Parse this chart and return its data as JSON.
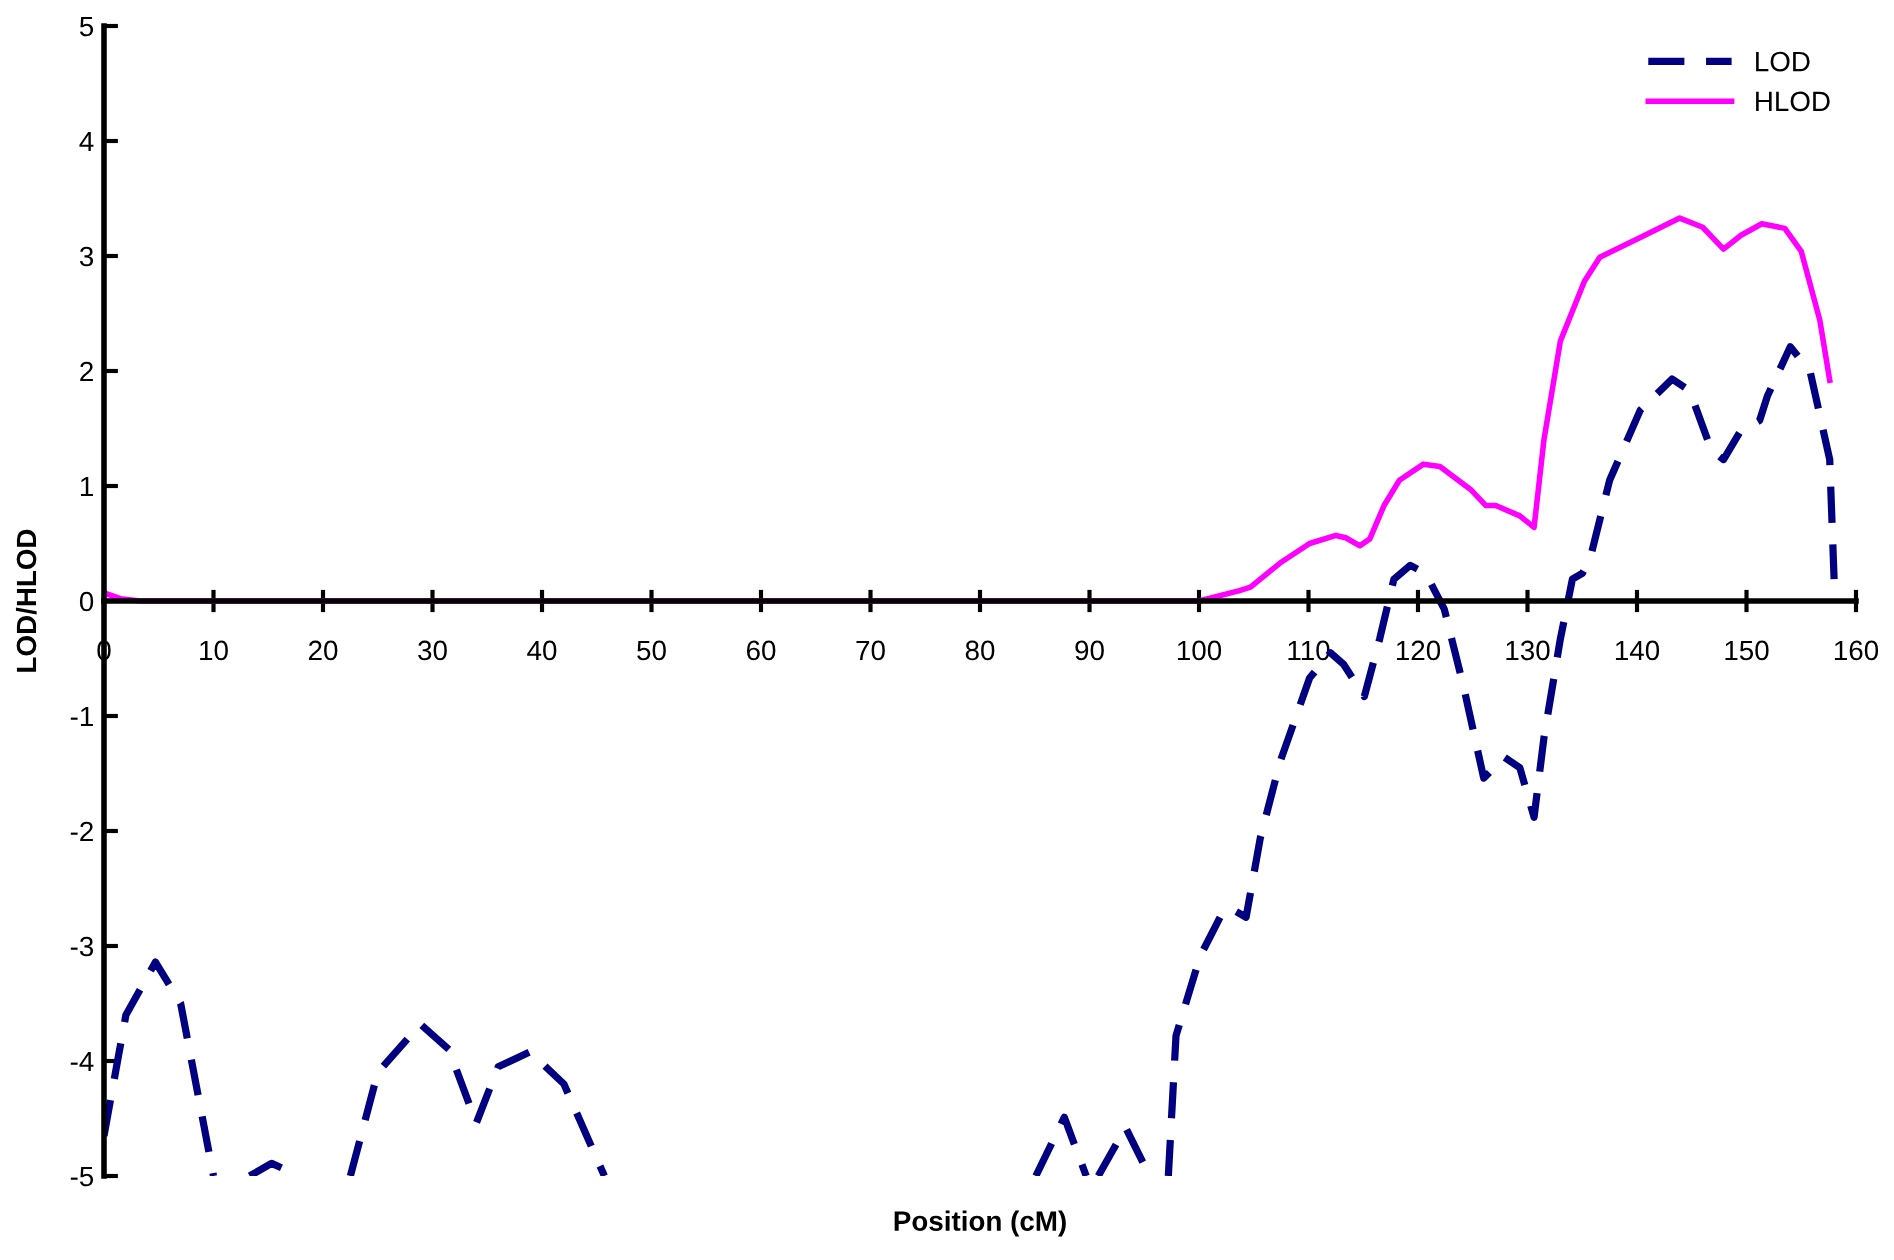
{
  "chart_data": {
    "type": "line",
    "xlabel": "Position (cM)",
    "ylabel": "LOD/HLOD",
    "xlim": [
      0,
      160
    ],
    "ylim": [
      -5,
      5
    ],
    "xticks": [
      0,
      10,
      20,
      30,
      40,
      50,
      60,
      70,
      80,
      90,
      100,
      110,
      120,
      130,
      140,
      150,
      160
    ],
    "yticks": [
      -5,
      -4,
      -3,
      -2,
      -1,
      0,
      1,
      2,
      3,
      4,
      5
    ],
    "grid": false,
    "legend": "top right",
    "marker": "none",
    "series": [
      {
        "name": "LOD",
        "color": "#000080",
        "line_style": "dashed",
        "x": [
          0,
          2,
          4.7,
          7,
          10,
          11.5,
          13.3,
          15.3,
          17.9,
          20,
          22.5,
          25,
          28.9,
          31.5,
          34,
          36,
          38.9,
          42,
          45.7,
          60,
          85.1,
          87.7,
          89.7,
          90.2,
          90.8,
          93.3,
          95.5,
          96.3,
          97.2,
          97.9,
          100.1,
          102.3,
          103.2,
          104.3,
          105.6,
          107.4,
          110.1,
          112,
          113.2,
          115.1,
          116.5,
          117.8,
          119.3,
          120.7,
          122.4,
          124.2,
          126,
          127.9,
          129.3,
          130.6,
          131.5,
          133,
          134.1,
          135,
          135.7,
          137.5,
          140.3,
          143.2,
          144.8,
          146.8,
          147.9,
          149.4,
          151.2,
          151.9,
          154,
          155.8,
          157.6,
          158
        ],
        "values": [
          -4.65,
          -3.6,
          -3.14,
          -3.5,
          -5,
          null,
          -5,
          -4.89,
          -5,
          null,
          -5,
          -4.1,
          -3.68,
          -3.9,
          -4.54,
          -4.05,
          -3.92,
          -4.2,
          -5,
          null,
          -5,
          -4.49,
          -5,
          null,
          -5,
          -4.58,
          -5,
          null,
          -5,
          -3.78,
          -3.09,
          -2.68,
          -2.69,
          -2.75,
          -2.06,
          -1.4,
          -0.67,
          -0.45,
          -0.55,
          -0.83,
          -0.33,
          0.19,
          0.31,
          0.24,
          -0.07,
          -0.76,
          -1.54,
          -1.36,
          -1.45,
          -1.88,
          -1.19,
          -0.33,
          0.19,
          0.24,
          0.36,
          1.05,
          1.66,
          1.93,
          1.83,
          1.31,
          1.23,
          1.47,
          1.57,
          1.78,
          2.21,
          2.0,
          1.23,
          0.19
        ]
      },
      {
        "name": "HLOD",
        "color": "#ff00ff",
        "line_style": "solid",
        "x": [
          0,
          1.5,
          3.3,
          50,
          100,
          103.7,
          104.7,
          107.4,
          110.1,
          112.5,
          113.4,
          114.7,
          115.6,
          116.9,
          118.3,
          120.5,
          122,
          124.8,
          126.2,
          127.1,
          129.3,
          130.6,
          131.5,
          133,
          135.2,
          136.6,
          140.3,
          143.9,
          146,
          147.9,
          149.5,
          151.4,
          153.5,
          155,
          156.7,
          157.6
        ],
        "values": [
          0.07,
          0.02,
          0,
          0,
          0,
          0.09,
          0.12,
          0.33,
          0.5,
          0.57,
          0.55,
          0.48,
          0.54,
          0.83,
          1.05,
          1.19,
          1.17,
          0.97,
          0.83,
          0.83,
          0.74,
          0.64,
          1.4,
          2.26,
          2.78,
          2.99,
          3.16,
          3.33,
          3.25,
          3.06,
          3.18,
          3.28,
          3.24,
          3.04,
          2.44,
          1.92
        ]
      }
    ]
  }
}
